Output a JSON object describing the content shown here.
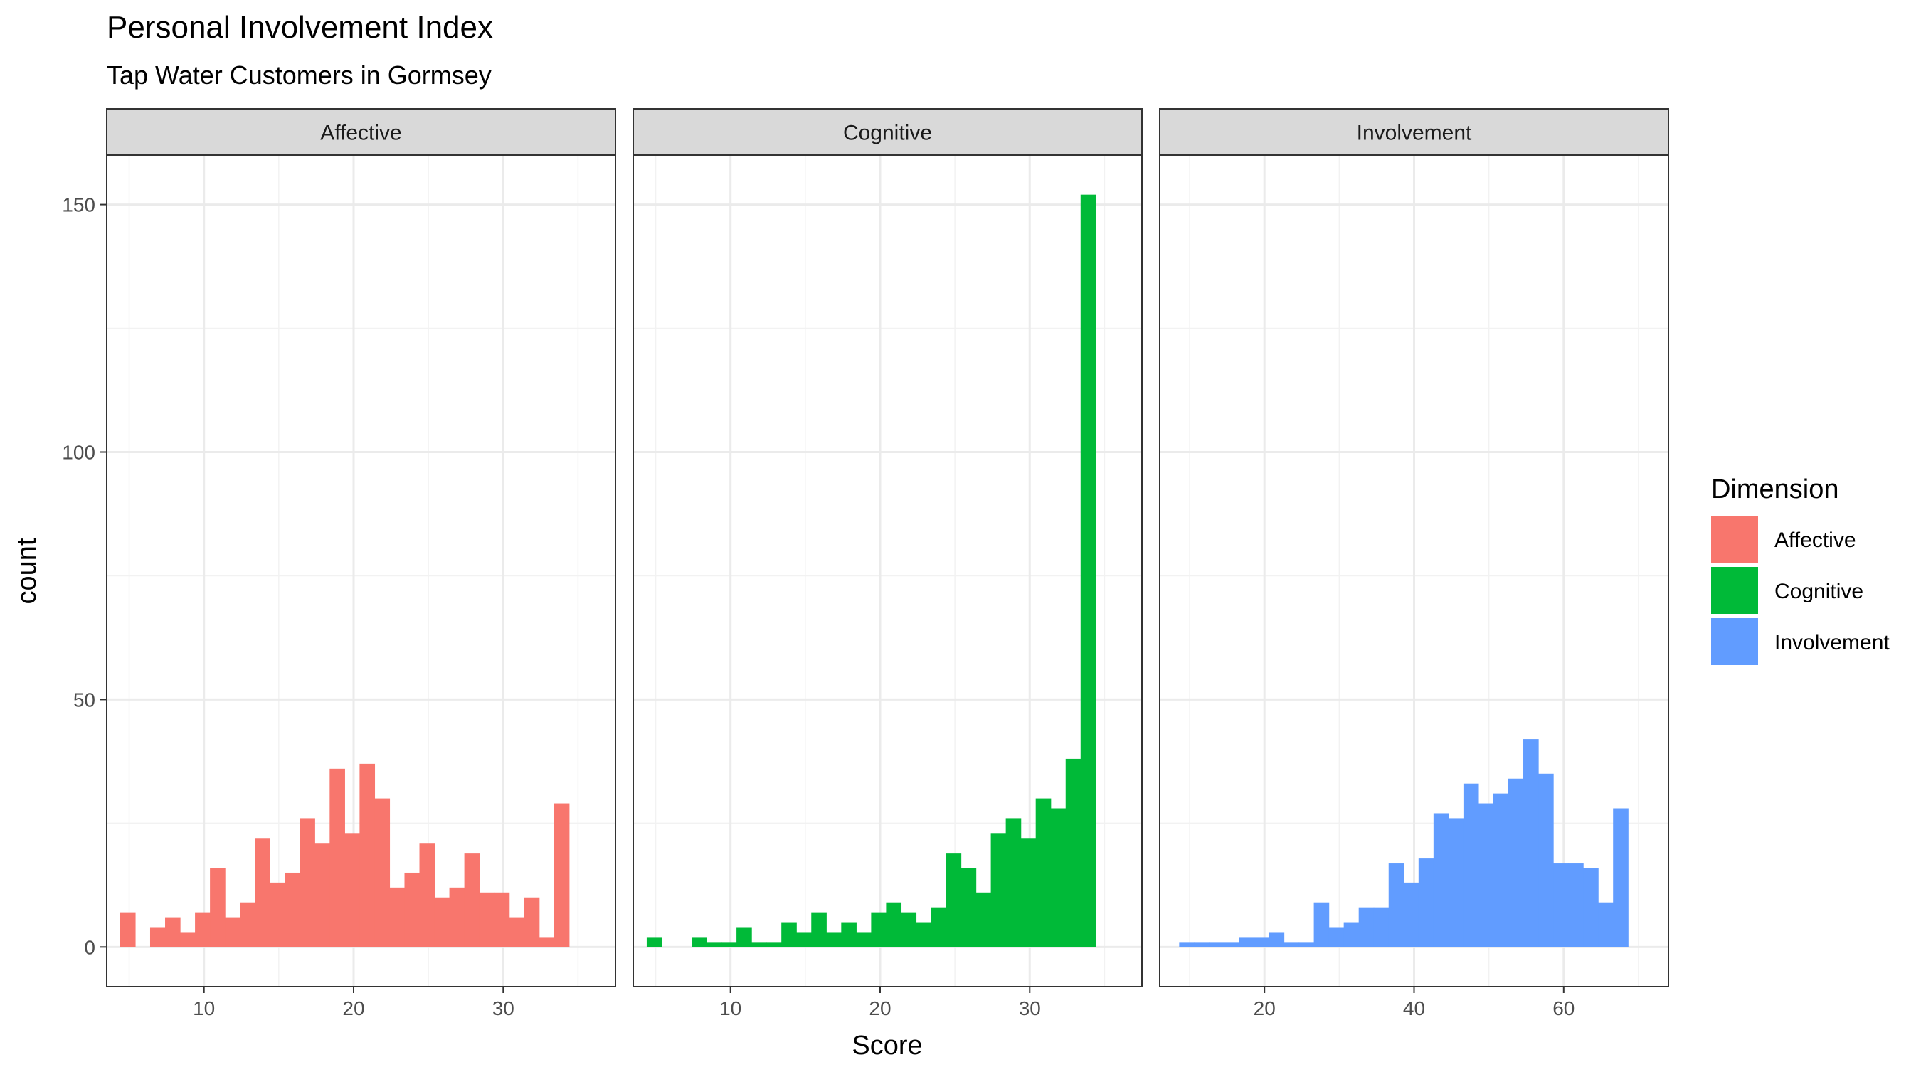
{
  "chart_data": {
    "type": "histogram",
    "title": "Personal Involvement Index",
    "subtitle": "Tap Water Customers in Gormsey",
    "xlabel": "Score",
    "ylabel": "count",
    "ylim": [
      -8,
      160
    ],
    "yticks": [
      0,
      50,
      100,
      150
    ],
    "grid": true,
    "facet_layout": "1 row x 3 columns, shared y axis",
    "legend": {
      "title": "Dimension",
      "position": "right",
      "entries": [
        {
          "label": "Affective",
          "color": "#F8766D"
        },
        {
          "label": "Cognitive",
          "color": "#00BA38"
        },
        {
          "label": "Involvement",
          "color": "#619CFF"
        }
      ]
    },
    "panels": [
      {
        "name": "Affective",
        "color": "#F8766D",
        "xlim": [
          3.5,
          37.5
        ],
        "xticks": [
          10,
          20,
          30
        ],
        "bins": [
          {
            "x0": 4.4,
            "x1": 5.4,
            "count": 7
          },
          {
            "x0": 5.4,
            "x1": 6.4,
            "count": 0
          },
          {
            "x0": 6.4,
            "x1": 7.4,
            "count": 4
          },
          {
            "x0": 7.4,
            "x1": 8.4,
            "count": 6
          },
          {
            "x0": 8.4,
            "x1": 9.4,
            "count": 3
          },
          {
            "x0": 9.4,
            "x1": 10.4,
            "count": 7
          },
          {
            "x0": 10.4,
            "x1": 11.4,
            "count": 16
          },
          {
            "x0": 11.4,
            "x1": 12.4,
            "count": 6
          },
          {
            "x0": 12.4,
            "x1": 13.4,
            "count": 9
          },
          {
            "x0": 13.4,
            "x1": 14.4,
            "count": 22
          },
          {
            "x0": 14.4,
            "x1": 15.4,
            "count": 13
          },
          {
            "x0": 15.4,
            "x1": 16.4,
            "count": 15
          },
          {
            "x0": 16.4,
            "x1": 17.4,
            "count": 26
          },
          {
            "x0": 17.4,
            "x1": 18.4,
            "count": 21
          },
          {
            "x0": 18.4,
            "x1": 19.4,
            "count": 36
          },
          {
            "x0": 19.4,
            "x1": 20.4,
            "count": 23
          },
          {
            "x0": 20.4,
            "x1": 21.4,
            "count": 37
          },
          {
            "x0": 21.4,
            "x1": 22.4,
            "count": 30
          },
          {
            "x0": 22.4,
            "x1": 23.4,
            "count": 12
          },
          {
            "x0": 23.4,
            "x1": 24.4,
            "count": 15
          },
          {
            "x0": 24.4,
            "x1": 25.4,
            "count": 21
          },
          {
            "x0": 25.4,
            "x1": 26.4,
            "count": 10
          },
          {
            "x0": 26.4,
            "x1": 27.4,
            "count": 12
          },
          {
            "x0": 27.4,
            "x1": 28.4,
            "count": 19
          },
          {
            "x0": 28.4,
            "x1": 29.4,
            "count": 11
          },
          {
            "x0": 29.4,
            "x1": 30.4,
            "count": 11
          },
          {
            "x0": 30.4,
            "x1": 31.4,
            "count": 6
          },
          {
            "x0": 31.4,
            "x1": 32.4,
            "count": 10
          },
          {
            "x0": 32.4,
            "x1": 33.4,
            "count": 2
          },
          {
            "x0": 33.4,
            "x1": 34.4,
            "count": 29
          }
        ]
      },
      {
        "name": "Cognitive",
        "color": "#00BA38",
        "xlim": [
          3.5,
          37.5
        ],
        "xticks": [
          10,
          20,
          30
        ],
        "bins": [
          {
            "x0": 4.4,
            "x1": 5.4,
            "count": 2
          },
          {
            "x0": 5.4,
            "x1": 6.4,
            "count": 0
          },
          {
            "x0": 6.4,
            "x1": 7.4,
            "count": 0
          },
          {
            "x0": 7.4,
            "x1": 8.4,
            "count": 2
          },
          {
            "x0": 8.4,
            "x1": 9.4,
            "count": 1
          },
          {
            "x0": 9.4,
            "x1": 10.4,
            "count": 1
          },
          {
            "x0": 10.4,
            "x1": 11.4,
            "count": 4
          },
          {
            "x0": 11.4,
            "x1": 12.4,
            "count": 1
          },
          {
            "x0": 12.4,
            "x1": 13.4,
            "count": 1
          },
          {
            "x0": 13.4,
            "x1": 14.4,
            "count": 5
          },
          {
            "x0": 14.4,
            "x1": 15.4,
            "count": 3
          },
          {
            "x0": 15.4,
            "x1": 16.4,
            "count": 7
          },
          {
            "x0": 16.4,
            "x1": 17.4,
            "count": 3
          },
          {
            "x0": 17.4,
            "x1": 18.4,
            "count": 5
          },
          {
            "x0": 18.4,
            "x1": 19.4,
            "count": 3
          },
          {
            "x0": 19.4,
            "x1": 20.4,
            "count": 7
          },
          {
            "x0": 20.4,
            "x1": 21.4,
            "count": 9
          },
          {
            "x0": 21.4,
            "x1": 22.4,
            "count": 7
          },
          {
            "x0": 22.4,
            "x1": 23.4,
            "count": 5
          },
          {
            "x0": 23.4,
            "x1": 24.4,
            "count": 8
          },
          {
            "x0": 24.4,
            "x1": 25.4,
            "count": 19
          },
          {
            "x0": 25.4,
            "x1": 26.4,
            "count": 16
          },
          {
            "x0": 26.4,
            "x1": 27.4,
            "count": 11
          },
          {
            "x0": 27.4,
            "x1": 28.4,
            "count": 23
          },
          {
            "x0": 28.4,
            "x1": 29.4,
            "count": 26
          },
          {
            "x0": 29.4,
            "x1": 30.4,
            "count": 22
          },
          {
            "x0": 30.4,
            "x1": 31.4,
            "count": 30
          },
          {
            "x0": 31.4,
            "x1": 32.4,
            "count": 28
          },
          {
            "x0": 32.4,
            "x1": 33.4,
            "count": 38
          },
          {
            "x0": 33.4,
            "x1": 34.4,
            "count": 152
          }
        ]
      },
      {
        "name": "Involvement",
        "color": "#619CFF",
        "xlim": [
          6,
          74
        ],
        "xticks": [
          20,
          40,
          60
        ],
        "bins": [
          {
            "x0": 8.6,
            "x1": 10.6,
            "count": 1
          },
          {
            "x0": 10.6,
            "x1": 12.6,
            "count": 1
          },
          {
            "x0": 12.6,
            "x1": 14.6,
            "count": 1
          },
          {
            "x0": 14.6,
            "x1": 16.6,
            "count": 1
          },
          {
            "x0": 16.6,
            "x1": 18.6,
            "count": 2
          },
          {
            "x0": 18.6,
            "x1": 20.6,
            "count": 2
          },
          {
            "x0": 20.6,
            "x1": 22.6,
            "count": 3
          },
          {
            "x0": 22.6,
            "x1": 24.6,
            "count": 1
          },
          {
            "x0": 24.6,
            "x1": 26.6,
            "count": 1
          },
          {
            "x0": 26.6,
            "x1": 28.6,
            "count": 9
          },
          {
            "x0": 28.6,
            "x1": 30.6,
            "count": 4
          },
          {
            "x0": 30.6,
            "x1": 32.6,
            "count": 5
          },
          {
            "x0": 32.6,
            "x1": 34.6,
            "count": 8
          },
          {
            "x0": 34.6,
            "x1": 36.6,
            "count": 8
          },
          {
            "x0": 36.6,
            "x1": 38.6,
            "count": 17
          },
          {
            "x0": 38.6,
            "x1": 40.6,
            "count": 13
          },
          {
            "x0": 40.6,
            "x1": 42.6,
            "count": 18
          },
          {
            "x0": 42.6,
            "x1": 44.6,
            "count": 27
          },
          {
            "x0": 44.6,
            "x1": 46.6,
            "count": 26
          },
          {
            "x0": 46.6,
            "x1": 48.6,
            "count": 33
          },
          {
            "x0": 48.6,
            "x1": 50.6,
            "count": 29
          },
          {
            "x0": 50.6,
            "x1": 52.6,
            "count": 31
          },
          {
            "x0": 52.6,
            "x1": 54.6,
            "count": 34
          },
          {
            "x0": 54.6,
            "x1": 56.6,
            "count": 42
          },
          {
            "x0": 56.6,
            "x1": 58.6,
            "count": 35
          },
          {
            "x0": 58.6,
            "x1": 60.6,
            "count": 17
          },
          {
            "x0": 60.6,
            "x1": 62.6,
            "count": 17
          },
          {
            "x0": 62.6,
            "x1": 64.6,
            "count": 16
          },
          {
            "x0": 64.6,
            "x1": 66.6,
            "count": 9
          },
          {
            "x0": 66.6,
            "x1": 68.6,
            "count": 28
          }
        ]
      }
    ]
  }
}
